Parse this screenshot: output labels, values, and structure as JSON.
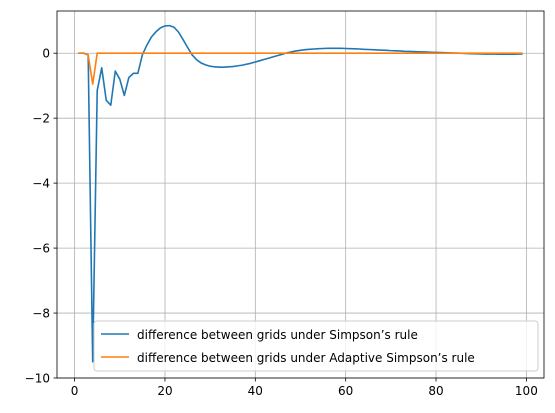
{
  "chart_data": {
    "type": "line",
    "title": "",
    "xlabel": "",
    "ylabel": "",
    "xlim": [
      -3.9,
      103.9
    ],
    "ylim": [
      -10,
      1.3
    ],
    "xticks": [
      0,
      20,
      40,
      60,
      80,
      100
    ],
    "yticks": [
      -10,
      -8,
      -6,
      -4,
      -2,
      0
    ],
    "xtick_labels": [
      "0",
      "20",
      "40",
      "60",
      "80",
      "100"
    ],
    "ytick_labels": [
      "−10",
      "−8",
      "−6",
      "−4",
      "−2",
      "0"
    ],
    "grid": true,
    "legend_position": "lower-right",
    "series": [
      {
        "name": "difference between grids under Simpson’s rule",
        "color": "#1f77b4",
        "x": [
          1,
          2,
          3,
          4,
          5,
          6,
          7,
          8,
          9,
          10,
          11,
          12,
          13,
          14,
          15,
          16,
          17,
          18,
          19,
          20,
          21,
          22,
          23,
          24,
          25,
          26,
          27,
          28,
          29,
          30,
          31,
          32,
          33,
          34,
          35,
          36,
          37,
          38,
          39,
          40,
          41,
          42,
          43,
          44,
          45,
          46,
          47,
          48,
          49,
          50,
          51,
          52,
          53,
          54,
          55,
          56,
          57,
          58,
          59,
          60,
          61,
          62,
          63,
          64,
          65,
          66,
          67,
          68,
          69,
          70,
          71,
          72,
          73,
          74,
          75,
          76,
          77,
          78,
          79,
          80,
          81,
          82,
          83,
          84,
          85,
          86,
          87,
          88,
          89,
          90,
          91,
          92,
          93,
          94,
          95,
          96,
          97,
          98,
          99
        ],
        "y": [
          0,
          0,
          -0.05,
          -9.5,
          -1.15,
          -0.45,
          -1.45,
          -1.6,
          -0.55,
          -0.8,
          -1.3,
          -0.75,
          -0.62,
          -0.62,
          -0.05,
          0.25,
          0.5,
          0.66,
          0.78,
          0.84,
          0.85,
          0.8,
          0.65,
          0.42,
          0.18,
          -0.05,
          -0.2,
          -0.3,
          -0.36,
          -0.4,
          -0.42,
          -0.43,
          -0.43,
          -0.42,
          -0.41,
          -0.39,
          -0.37,
          -0.34,
          -0.31,
          -0.27,
          -0.23,
          -0.19,
          -0.15,
          -0.11,
          -0.07,
          -0.03,
          0.01,
          0.04,
          0.07,
          0.09,
          0.11,
          0.12,
          0.13,
          0.14,
          0.145,
          0.15,
          0.15,
          0.15,
          0.15,
          0.145,
          0.14,
          0.135,
          0.13,
          0.12,
          0.115,
          0.11,
          0.1,
          0.095,
          0.09,
          0.08,
          0.075,
          0.07,
          0.06,
          0.055,
          0.05,
          0.045,
          0.04,
          0.035,
          0.03,
          0.025,
          0.02,
          0.015,
          0.01,
          0.005,
          0,
          -0.005,
          -0.01,
          -0.015,
          -0.02,
          -0.022,
          -0.025,
          -0.027,
          -0.028,
          -0.03,
          -0.03,
          -0.03,
          -0.03,
          -0.028,
          -0.025
        ]
      },
      {
        "name": "difference between grids under Adaptive Simpson’s rule",
        "color": "#ff7f0e",
        "x": [
          1,
          2,
          3,
          4,
          5,
          6,
          99
        ],
        "y": [
          0,
          0,
          -0.05,
          -0.95,
          0,
          0,
          0
        ]
      }
    ]
  }
}
